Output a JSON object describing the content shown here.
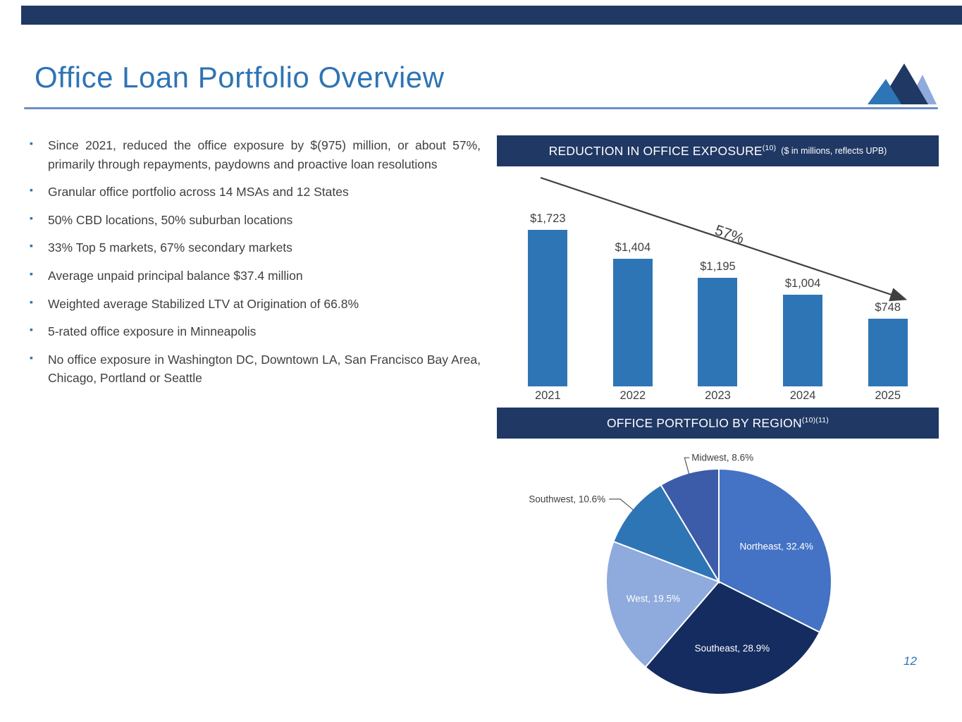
{
  "header": {
    "title": "Office Loan Portfolio Overview"
  },
  "bullets": [
    "Since 2021, reduced the office exposure by $(975) million, or about 57%, primarily through repayments, paydowns and proactive loan resolutions",
    "Granular office portfolio across 14 MSAs and 12 States",
    "50% CBD locations, 50% suburban locations",
    "33% Top 5 markets, 67% secondary markets",
    "Average unpaid principal balance $37.4 million",
    "Weighted average Stabilized LTV at Origination of 66.8%",
    "5-rated office exposure in Minneapolis",
    "No office exposure in Washington DC, Downtown LA, San Francisco Bay Area, Chicago, Portland or Seattle"
  ],
  "chart_data": [
    {
      "type": "bar",
      "title": "REDUCTION IN OFFICE EXPOSURE",
      "title_superscript": "(10)",
      "subtitle": "($ in millions, reflects UPB)",
      "categories": [
        "2021",
        "2022",
        "2023",
        "2024",
        "2025"
      ],
      "values": [
        1723,
        1404,
        1195,
        1004,
        748
      ],
      "value_labels": [
        "$1,723",
        "$1,404",
        "$1,195",
        "$1,004",
        "$748"
      ],
      "annotation": "57%",
      "ylim": [
        0,
        1900
      ],
      "legend": "none",
      "grid": false,
      "bar_color": "#2E75B6"
    },
    {
      "type": "pie",
      "title": "OFFICE PORTFOLIO BY REGION",
      "title_superscript": "(10)(11)",
      "slices": [
        {
          "label": "Northeast",
          "value": 32.4,
          "display": "Northeast, 32.4%",
          "color": "#4472C4",
          "label_position": "inside"
        },
        {
          "label": "Southeast",
          "value": 28.9,
          "display": "Southeast, 28.9%",
          "color": "#142C5F",
          "label_position": "inside"
        },
        {
          "label": "West",
          "value": 19.5,
          "display": "West, 19.5%",
          "color": "#8FAADC",
          "label_position": "inside"
        },
        {
          "label": "Southwest",
          "value": 10.6,
          "display": "Southwest, 10.6%",
          "color": "#2E75B6",
          "label_position": "outside-left"
        },
        {
          "label": "Midwest",
          "value": 8.6,
          "display": "Midwest, 8.6%",
          "color": "#3C5BA9",
          "label_position": "outside-right"
        }
      ]
    }
  ],
  "page": {
    "number": "12"
  },
  "colors": {
    "header_bar": "#203864",
    "accent_blue": "#2E74B5",
    "body_text": "#404040",
    "arrow": "#404040",
    "bar_fill": "#2E75B6"
  }
}
